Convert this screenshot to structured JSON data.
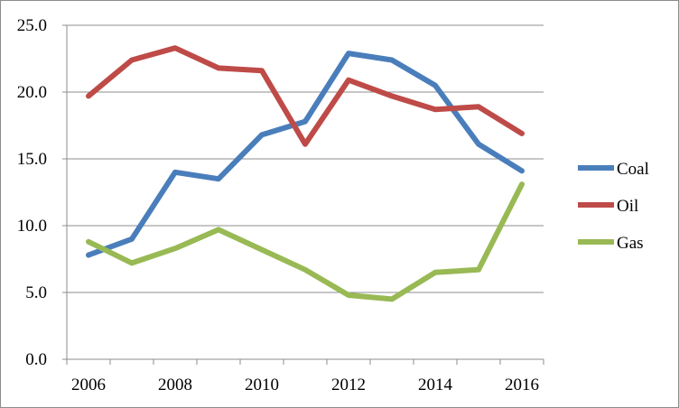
{
  "chart_data": {
    "type": "line",
    "title": "",
    "xlabel": "",
    "ylabel": "",
    "categories": [
      "2006",
      "2007",
      "2008",
      "2009",
      "2010",
      "2011",
      "2012",
      "2013",
      "2014",
      "2015",
      "2016"
    ],
    "x_tick_labels": [
      "2006",
      "2008",
      "2010",
      "2012",
      "2014",
      "2016"
    ],
    "y_tick_labels": [
      "0.0",
      "5.0",
      "10.0",
      "15.0",
      "20.0",
      "25.0"
    ],
    "ylim": [
      0,
      25
    ],
    "grid": true,
    "legend_position": "right",
    "series": [
      {
        "name": "Coal",
        "color": "#4a7ebb",
        "values": [
          7.8,
          9.0,
          14.0,
          13.5,
          16.8,
          17.8,
          22.9,
          22.4,
          20.5,
          16.1,
          14.1
        ]
      },
      {
        "name": "Oil",
        "color": "#be4b48",
        "values": [
          19.7,
          22.4,
          23.3,
          21.8,
          21.6,
          16.1,
          20.9,
          19.7,
          18.7,
          18.9,
          16.9
        ]
      },
      {
        "name": "Gas",
        "color": "#98b954",
        "values": [
          8.8,
          7.2,
          8.3,
          9.7,
          8.2,
          6.7,
          4.8,
          4.5,
          6.5,
          6.7,
          13.1
        ]
      }
    ]
  }
}
